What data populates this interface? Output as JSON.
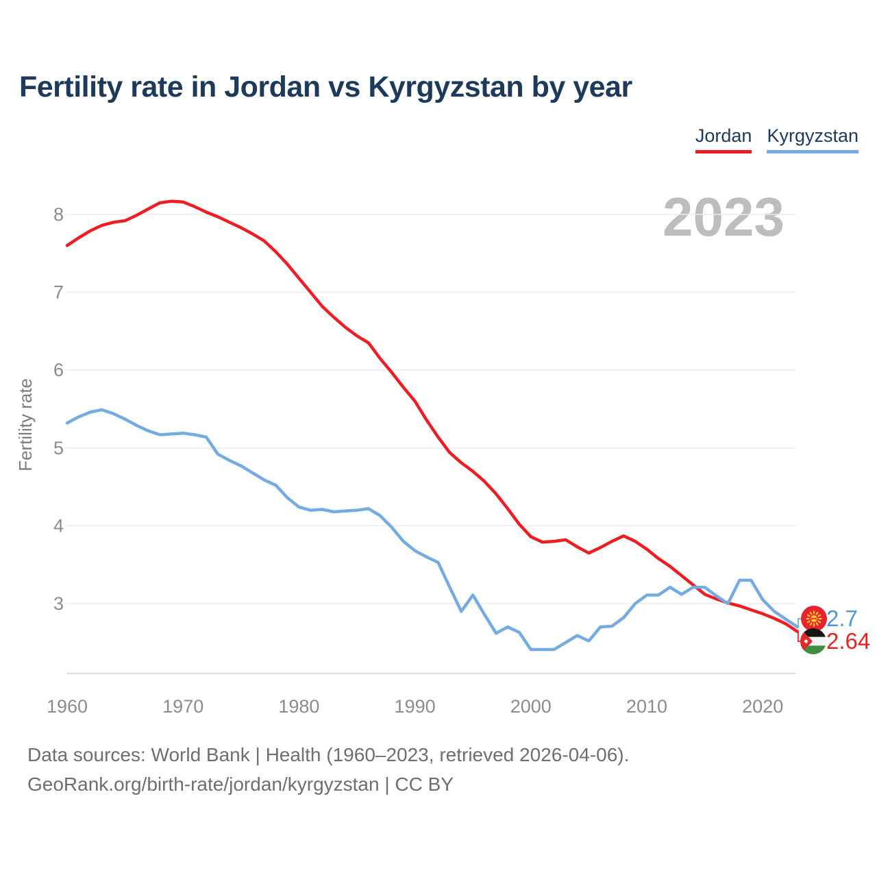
{
  "title": "Fertility rate in Jordan vs Kyrgyzstan by year",
  "watermark": "2023",
  "legend": {
    "items": [
      {
        "label": "Jordan",
        "color": "#ee1d23"
      },
      {
        "label": "Kyrgyzstan",
        "color": "#74abe3"
      }
    ]
  },
  "end_labels": {
    "kyrgyzstan": {
      "value": "2.7",
      "color": "#4e97d9",
      "flag": "kyrgyzstan-flag"
    },
    "jordan": {
      "value": "2.64",
      "color": "#e8221f",
      "flag": "jordan-flag"
    }
  },
  "footer": {
    "line1": "Data sources: World Bank | Health (1960–2023, retrieved 2026-04-06).",
    "line2": "GeoRank.org/birth-rate/jordan/kyrgyzstan | CC BY"
  },
  "chart_data": {
    "type": "line",
    "title": "Fertility rate in Jordan vs Kyrgyzstan by year",
    "xlabel": "",
    "ylabel": "Fertility rate",
    "x_ticks": [
      1960,
      1970,
      1980,
      1990,
      2000,
      2010,
      2020
    ],
    "y_ticks": [
      8,
      7,
      6,
      5,
      4,
      3
    ],
    "xlim": [
      1960,
      2023
    ],
    "ylim": [
      2.1,
      8.4
    ],
    "grid": "horizontal",
    "legend_position": "top-right",
    "x": [
      1960,
      1961,
      1962,
      1963,
      1964,
      1965,
      1966,
      1967,
      1968,
      1969,
      1970,
      1971,
      1972,
      1973,
      1974,
      1975,
      1976,
      1977,
      1978,
      1979,
      1980,
      1981,
      1982,
      1983,
      1984,
      1985,
      1986,
      1987,
      1988,
      1989,
      1990,
      1991,
      1992,
      1993,
      1994,
      1995,
      1996,
      1997,
      1998,
      1999,
      2000,
      2001,
      2002,
      2003,
      2004,
      2005,
      2006,
      2007,
      2008,
      2009,
      2010,
      2011,
      2012,
      2013,
      2014,
      2015,
      2016,
      2017,
      2018,
      2019,
      2020,
      2021,
      2022,
      2023
    ],
    "series": [
      {
        "name": "Jordan",
        "color": "#ee1d23",
        "values": [
          7.6,
          7.7,
          7.79,
          7.86,
          7.9,
          7.92,
          7.99,
          8.07,
          8.15,
          8.17,
          8.16,
          8.1,
          8.03,
          7.97,
          7.9,
          7.83,
          7.75,
          7.66,
          7.52,
          7.36,
          7.18,
          7.0,
          6.82,
          6.68,
          6.55,
          6.44,
          6.35,
          6.15,
          5.97,
          5.78,
          5.6,
          5.36,
          5.14,
          4.94,
          4.81,
          4.7,
          4.57,
          4.41,
          4.22,
          4.02,
          3.86,
          3.79,
          3.8,
          3.82,
          3.73,
          3.65,
          3.72,
          3.8,
          3.87,
          3.8,
          3.7,
          3.58,
          3.48,
          3.36,
          3.24,
          3.12,
          3.06,
          3.01,
          2.97,
          2.92,
          2.87,
          2.81,
          2.74,
          2.64
        ]
      },
      {
        "name": "Kyrgyzstan",
        "color": "#74abe3",
        "values": [
          5.32,
          5.4,
          5.46,
          5.49,
          5.44,
          5.37,
          5.29,
          5.22,
          5.17,
          5.18,
          5.19,
          5.17,
          5.14,
          4.92,
          4.84,
          4.77,
          4.68,
          4.59,
          4.52,
          4.36,
          4.24,
          4.2,
          4.21,
          4.18,
          4.19,
          4.2,
          4.22,
          4.13,
          3.98,
          3.8,
          3.68,
          3.6,
          3.53,
          3.21,
          2.9,
          3.11,
          2.86,
          2.62,
          2.7,
          2.63,
          2.41,
          2.41,
          2.41,
          2.5,
          2.59,
          2.52,
          2.7,
          2.71,
          2.82,
          3.0,
          3.11,
          3.11,
          3.21,
          3.12,
          3.21,
          3.21,
          3.1,
          3.0,
          3.3,
          3.3,
          3.05,
          2.9,
          2.8,
          2.7
        ]
      }
    ],
    "annotations": {
      "year_watermark": "2023",
      "jordan_last": 2.64,
      "kyrgyzstan_last": 2.7
    }
  }
}
